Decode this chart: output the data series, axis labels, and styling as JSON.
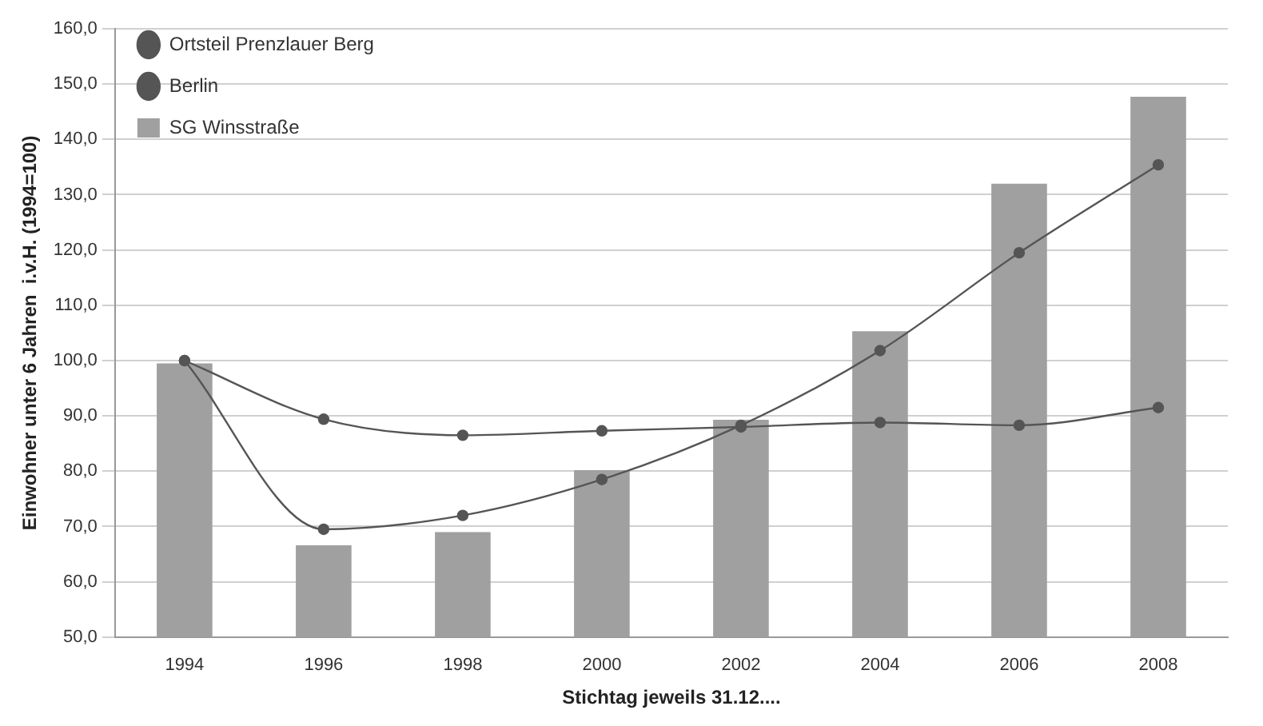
{
  "chart_data": {
    "type": "bar",
    "xlabel": "Stichtag jeweils 31.12....",
    "ylabel": "Einwohner unter 6 Jahren  i.v.H. (1994=100)",
    "categories": [
      "1994",
      "1996",
      "1998",
      "2000",
      "2002",
      "2004",
      "2006",
      "2008"
    ],
    "series": [
      {
        "name": "SG Winsstraße",
        "color": "#a0a0a0",
        "values": [
          99.5,
          66.6,
          69,
          80.2,
          89.3,
          105.3,
          132,
          147.7
        ]
      },
      {
        "name": "Ortsteil Prenzlauer Berg",
        "type": "line",
        "color": "#555555",
        "values": [
          100,
          69.5,
          72,
          78.5,
          88.3,
          101.8,
          119.5,
          135.4
        ]
      },
      {
        "name": "Berlin",
        "type": "line",
        "color": "#555555",
        "values": [
          100,
          89.4,
          86.5,
          87.3,
          88,
          88.8,
          88.3,
          91.5
        ]
      }
    ],
    "ylim": [
      50,
      160
    ],
    "yticks": [
      {
        "value": 50,
        "label": "50,0"
      },
      {
        "value": 60,
        "label": "60,0"
      },
      {
        "value": 70,
        "label": "70,0"
      },
      {
        "value": 80,
        "label": "80,0"
      },
      {
        "value": 90,
        "label": "90,0"
      },
      {
        "value": 100,
        "label": "100,0"
      },
      {
        "value": 110,
        "label": "110,0"
      },
      {
        "value": 120,
        "label": "120,0"
      },
      {
        "value": 130,
        "label": "130,0"
      },
      {
        "value": 140,
        "label": "140,0"
      },
      {
        "value": 150,
        "label": "150,0"
      },
      {
        "value": 160,
        "label": "160,0"
      }
    ],
    "grid": "y",
    "legend": "top left",
    "marker": "circle"
  }
}
